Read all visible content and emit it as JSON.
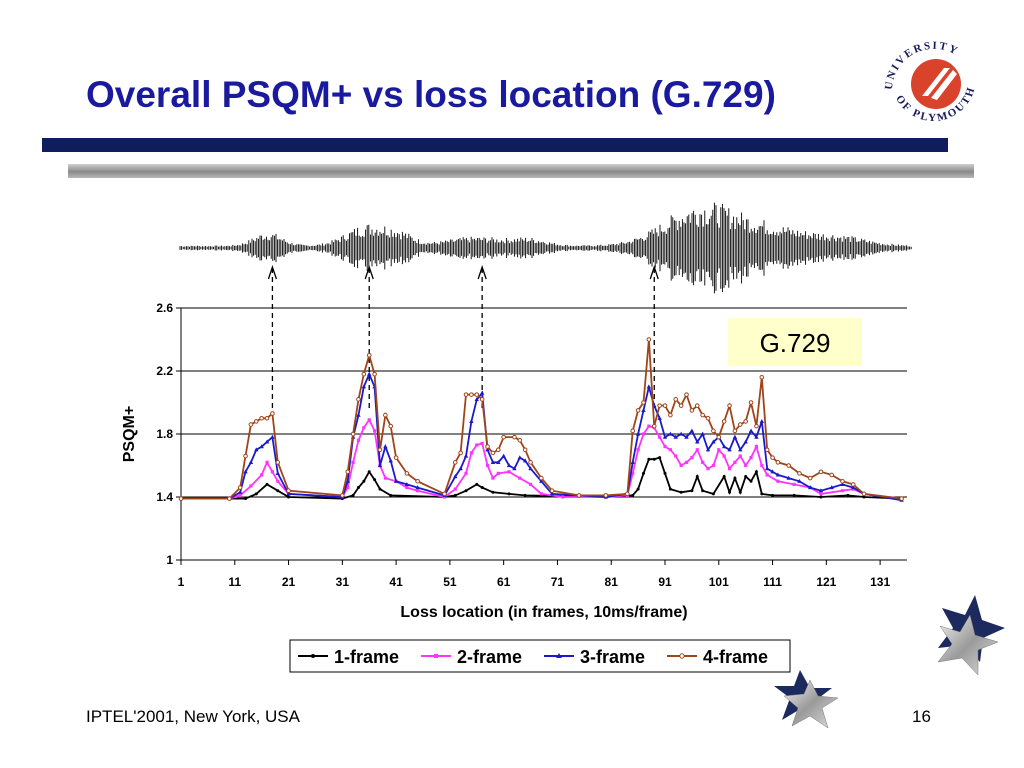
{
  "slide": {
    "title": "Overall PSQM+ vs loss location (G.729)",
    "footer_left": "IPTEL'2001, New York, USA",
    "page_number": "16",
    "codec_label": "G.729",
    "logo_text_top": "UNIVERSITY",
    "logo_text_bottom": "OF PLYMOUTH"
  },
  "colors": {
    "title": "#1a1a9e",
    "rule_dark": "#0f1d5c",
    "label_box": "#ffffcc",
    "logo_red": "#d9432b"
  },
  "chart_data": {
    "type": "line",
    "title": "",
    "xlabel": "Loss location (in frames, 10ms/frame)",
    "ylabel": "PSQM+",
    "xlim": [
      1,
      136
    ],
    "ylim": [
      1,
      2.6
    ],
    "yticks": [
      "1",
      "1.4",
      "1.8",
      "2.2",
      "2.6"
    ],
    "xticks": [
      "1",
      "11",
      "21",
      "31",
      "41",
      "51",
      "61",
      "71",
      "81",
      "91",
      "101",
      "111",
      "121",
      "131"
    ],
    "grid": "horizontal",
    "legend_position": "bottom",
    "annotation_frames": [
      18,
      36,
      57,
      89
    ],
    "series": [
      {
        "name": "1-frame",
        "color": "#000000",
        "marker": "dot",
        "points": [
          [
            1,
            1.39
          ],
          [
            10,
            1.39
          ],
          [
            13,
            1.39
          ],
          [
            15,
            1.42
          ],
          [
            17,
            1.48
          ],
          [
            19,
            1.44
          ],
          [
            21,
            1.4
          ],
          [
            31,
            1.39
          ],
          [
            33,
            1.41
          ],
          [
            34,
            1.46
          ],
          [
            35,
            1.5
          ],
          [
            36,
            1.56
          ],
          [
            37,
            1.51
          ],
          [
            38,
            1.45
          ],
          [
            40,
            1.41
          ],
          [
            50,
            1.4
          ],
          [
            52,
            1.41
          ],
          [
            54,
            1.44
          ],
          [
            56,
            1.48
          ],
          [
            57,
            1.46
          ],
          [
            59,
            1.43
          ],
          [
            62,
            1.42
          ],
          [
            65,
            1.41
          ],
          [
            80,
            1.4
          ],
          [
            85,
            1.41
          ],
          [
            86,
            1.45
          ],
          [
            87,
            1.55
          ],
          [
            88,
            1.64
          ],
          [
            89,
            1.64
          ],
          [
            90,
            1.65
          ],
          [
            91,
            1.55
          ],
          [
            92,
            1.45
          ],
          [
            94,
            1.43
          ],
          [
            96,
            1.44
          ],
          [
            97,
            1.53
          ],
          [
            98,
            1.44
          ],
          [
            100,
            1.42
          ],
          [
            102,
            1.53
          ],
          [
            103,
            1.43
          ],
          [
            104,
            1.52
          ],
          [
            105,
            1.43
          ],
          [
            106,
            1.53
          ],
          [
            107,
            1.5
          ],
          [
            108,
            1.56
          ],
          [
            109,
            1.42
          ],
          [
            111,
            1.41
          ],
          [
            115,
            1.41
          ],
          [
            120,
            1.4
          ],
          [
            125,
            1.41
          ],
          [
            128,
            1.4
          ],
          [
            135,
            1.39
          ]
        ]
      },
      {
        "name": "2-frame",
        "color": "#ff33ff",
        "marker": "square",
        "points": [
          [
            1,
            1.39
          ],
          [
            10,
            1.39
          ],
          [
            12,
            1.41
          ],
          [
            14,
            1.47
          ],
          [
            16,
            1.54
          ],
          [
            17,
            1.62
          ],
          [
            18,
            1.56
          ],
          [
            19,
            1.5
          ],
          [
            21,
            1.42
          ],
          [
            31,
            1.4
          ],
          [
            32,
            1.46
          ],
          [
            33,
            1.62
          ],
          [
            34,
            1.76
          ],
          [
            35,
            1.84
          ],
          [
            36,
            1.89
          ],
          [
            37,
            1.82
          ],
          [
            38,
            1.6
          ],
          [
            39,
            1.52
          ],
          [
            41,
            1.5
          ],
          [
            43,
            1.46
          ],
          [
            45,
            1.44
          ],
          [
            50,
            1.4
          ],
          [
            52,
            1.45
          ],
          [
            54,
            1.55
          ],
          [
            55,
            1.68
          ],
          [
            56,
            1.73
          ],
          [
            57,
            1.74
          ],
          [
            58,
            1.6
          ],
          [
            59,
            1.52
          ],
          [
            60,
            1.55
          ],
          [
            62,
            1.56
          ],
          [
            64,
            1.52
          ],
          [
            66,
            1.48
          ],
          [
            68,
            1.42
          ],
          [
            72,
            1.4
          ],
          [
            80,
            1.4
          ],
          [
            84,
            1.41
          ],
          [
            85,
            1.55
          ],
          [
            86,
            1.7
          ],
          [
            87,
            1.8
          ],
          [
            88,
            1.85
          ],
          [
            89,
            1.84
          ],
          [
            90,
            1.78
          ],
          [
            91,
            1.72
          ],
          [
            92,
            1.7
          ],
          [
            93,
            1.66
          ],
          [
            94,
            1.6
          ],
          [
            95,
            1.62
          ],
          [
            96,
            1.65
          ],
          [
            97,
            1.7
          ],
          [
            98,
            1.62
          ],
          [
            99,
            1.58
          ],
          [
            100,
            1.6
          ],
          [
            101,
            1.7
          ],
          [
            102,
            1.66
          ],
          [
            103,
            1.58
          ],
          [
            104,
            1.62
          ],
          [
            105,
            1.66
          ],
          [
            106,
            1.6
          ],
          [
            107,
            1.65
          ],
          [
            108,
            1.72
          ],
          [
            109,
            1.6
          ],
          [
            110,
            1.54
          ],
          [
            112,
            1.5
          ],
          [
            115,
            1.48
          ],
          [
            118,
            1.46
          ],
          [
            120,
            1.42
          ],
          [
            124,
            1.44
          ],
          [
            126,
            1.45
          ],
          [
            128,
            1.42
          ],
          [
            135,
            1.39
          ]
        ]
      },
      {
        "name": "3-frame",
        "color": "#1a1acc",
        "marker": "triangle",
        "points": [
          [
            1,
            1.39
          ],
          [
            10,
            1.39
          ],
          [
            12,
            1.43
          ],
          [
            13,
            1.56
          ],
          [
            14,
            1.62
          ],
          [
            15,
            1.7
          ],
          [
            16,
            1.72
          ],
          [
            17,
            1.75
          ],
          [
            18,
            1.78
          ],
          [
            19,
            1.55
          ],
          [
            21,
            1.42
          ],
          [
            31,
            1.4
          ],
          [
            32,
            1.5
          ],
          [
            33,
            1.78
          ],
          [
            34,
            1.92
          ],
          [
            35,
            2.1
          ],
          [
            36,
            2.18
          ],
          [
            37,
            2.1
          ],
          [
            38,
            1.6
          ],
          [
            39,
            1.72
          ],
          [
            40,
            1.63
          ],
          [
            41,
            1.5
          ],
          [
            43,
            1.48
          ],
          [
            45,
            1.46
          ],
          [
            50,
            1.41
          ],
          [
            52,
            1.53
          ],
          [
            53,
            1.58
          ],
          [
            54,
            1.66
          ],
          [
            55,
            1.88
          ],
          [
            56,
            2.02
          ],
          [
            57,
            2.06
          ],
          [
            58,
            1.7
          ],
          [
            59,
            1.62
          ],
          [
            60,
            1.62
          ],
          [
            61,
            1.66
          ],
          [
            62,
            1.6
          ],
          [
            63,
            1.58
          ],
          [
            64,
            1.65
          ],
          [
            65,
            1.63
          ],
          [
            66,
            1.58
          ],
          [
            68,
            1.5
          ],
          [
            70,
            1.42
          ],
          [
            80,
            1.4
          ],
          [
            84,
            1.42
          ],
          [
            85,
            1.62
          ],
          [
            86,
            1.8
          ],
          [
            87,
            1.95
          ],
          [
            88,
            2.1
          ],
          [
            89,
            1.98
          ],
          [
            90,
            1.9
          ],
          [
            91,
            1.78
          ],
          [
            92,
            1.8
          ],
          [
            93,
            1.78
          ],
          [
            94,
            1.8
          ],
          [
            95,
            1.78
          ],
          [
            96,
            1.82
          ],
          [
            97,
            1.75
          ],
          [
            98,
            1.8
          ],
          [
            99,
            1.7
          ],
          [
            100,
            1.75
          ],
          [
            101,
            1.78
          ],
          [
            102,
            1.72
          ],
          [
            103,
            1.7
          ],
          [
            104,
            1.78
          ],
          [
            105,
            1.7
          ],
          [
            106,
            1.75
          ],
          [
            107,
            1.82
          ],
          [
            108,
            1.78
          ],
          [
            109,
            1.88
          ],
          [
            110,
            1.58
          ],
          [
            111,
            1.56
          ],
          [
            112,
            1.54
          ],
          [
            114,
            1.52
          ],
          [
            116,
            1.5
          ],
          [
            118,
            1.46
          ],
          [
            120,
            1.44
          ],
          [
            122,
            1.46
          ],
          [
            124,
            1.48
          ],
          [
            126,
            1.46
          ],
          [
            128,
            1.42
          ],
          [
            135,
            1.38
          ]
        ]
      },
      {
        "name": "4-frame",
        "color": "#a0441a",
        "marker": "circle",
        "points": [
          [
            1,
            1.39
          ],
          [
            10,
            1.39
          ],
          [
            12,
            1.46
          ],
          [
            13,
            1.66
          ],
          [
            14,
            1.86
          ],
          [
            15,
            1.88
          ],
          [
            16,
            1.9
          ],
          [
            17,
            1.9
          ],
          [
            18,
            1.93
          ],
          [
            19,
            1.62
          ],
          [
            21,
            1.44
          ],
          [
            31,
            1.41
          ],
          [
            32,
            1.56
          ],
          [
            33,
            1.8
          ],
          [
            34,
            2.02
          ],
          [
            35,
            2.18
          ],
          [
            36,
            2.3
          ],
          [
            37,
            2.18
          ],
          [
            38,
            1.7
          ],
          [
            39,
            1.92
          ],
          [
            40,
            1.85
          ],
          [
            41,
            1.65
          ],
          [
            43,
            1.55
          ],
          [
            45,
            1.5
          ],
          [
            50,
            1.42
          ],
          [
            52,
            1.62
          ],
          [
            53,
            1.68
          ],
          [
            54,
            2.05
          ],
          [
            55,
            2.05
          ],
          [
            56,
            2.05
          ],
          [
            57,
            2.02
          ],
          [
            58,
            1.72
          ],
          [
            59,
            1.68
          ],
          [
            60,
            1.7
          ],
          [
            61,
            1.78
          ],
          [
            63,
            1.78
          ],
          [
            64,
            1.76
          ],
          [
            65,
            1.7
          ],
          [
            66,
            1.62
          ],
          [
            68,
            1.52
          ],
          [
            70,
            1.44
          ],
          [
            75,
            1.41
          ],
          [
            80,
            1.41
          ],
          [
            84,
            1.42
          ],
          [
            85,
            1.82
          ],
          [
            86,
            1.95
          ],
          [
            87,
            2.0
          ],
          [
            88,
            2.4
          ],
          [
            89,
            1.85
          ],
          [
            90,
            1.98
          ],
          [
            91,
            1.98
          ],
          [
            92,
            1.92
          ],
          [
            93,
            2.02
          ],
          [
            94,
            1.98
          ],
          [
            95,
            2.05
          ],
          [
            96,
            1.95
          ],
          [
            97,
            1.98
          ],
          [
            98,
            1.92
          ],
          [
            99,
            1.9
          ],
          [
            100,
            1.82
          ],
          [
            101,
            1.78
          ],
          [
            102,
            1.88
          ],
          [
            103,
            1.98
          ],
          [
            104,
            1.82
          ],
          [
            105,
            1.86
          ],
          [
            106,
            1.88
          ],
          [
            107,
            2.0
          ],
          [
            108,
            1.85
          ],
          [
            109,
            2.16
          ],
          [
            110,
            1.7
          ],
          [
            111,
            1.65
          ],
          [
            112,
            1.62
          ],
          [
            114,
            1.6
          ],
          [
            116,
            1.55
          ],
          [
            118,
            1.52
          ],
          [
            120,
            1.56
          ],
          [
            122,
            1.54
          ],
          [
            124,
            1.5
          ],
          [
            126,
            1.48
          ],
          [
            128,
            1.42
          ],
          [
            135,
            1.39
          ]
        ]
      }
    ]
  }
}
